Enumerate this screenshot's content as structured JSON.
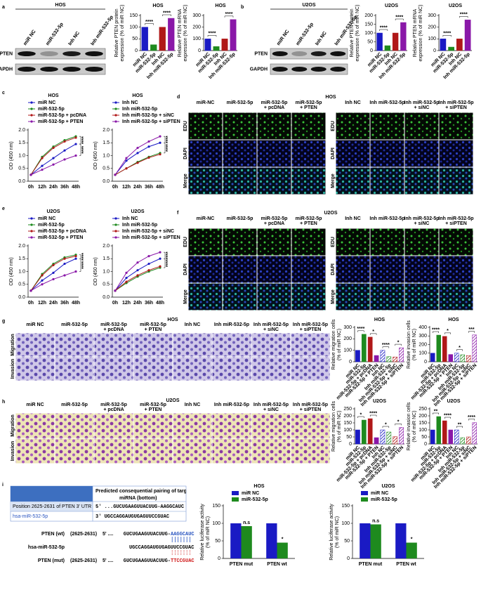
{
  "panel_labels": [
    "a",
    "b",
    "c",
    "d",
    "e",
    "f",
    "g",
    "h",
    "i"
  ],
  "blots": [
    {
      "title": "HOS",
      "lanes": [
        "miR NC",
        "miR-532-5p",
        "Inh NC",
        "Inh miR-532-5p"
      ],
      "rows": [
        "PTEN",
        "GAPDH"
      ]
    },
    {
      "title": "U2OS",
      "lanes": [
        "miR NC",
        "miR-532-5p",
        "Inh NC",
        "Inh miR-532-5p"
      ],
      "rows": [
        "PTEN",
        "GAPDH"
      ]
    }
  ],
  "image_grids": [
    {
      "title": "HOS",
      "groups": [
        [
          [
            "miR-NC"
          ],
          [
            "miR-532-5p"
          ],
          [
            "miR-532-5p",
            "+ pcDNA"
          ],
          [
            "miR-532-5p",
            "+ PTEN"
          ]
        ],
        [
          [
            "Inh NC"
          ],
          [
            "Inh miR-532-5p"
          ],
          [
            "Inh miR-532-5p",
            "+ siNC"
          ],
          [
            "Inh miR-532-5p",
            "+ siPTEN"
          ]
        ]
      ],
      "rows": [
        "EDU",
        "DAPI",
        "Merge"
      ]
    },
    {
      "title": "U2OS",
      "groups": [
        [
          [
            "miR-NC"
          ],
          [
            "miR-532-5p"
          ],
          [
            "miR-532-5p",
            "+ pcDNA"
          ],
          [
            "miR-532-5p",
            "+ PTEN"
          ]
        ],
        [
          [
            "Inh NC"
          ],
          [
            "Inh miR-532-5p"
          ],
          [
            "Inh miR-532-5p",
            "+ siNC"
          ],
          [
            "Inh miR-532-5p",
            "+ siPTEN"
          ]
        ]
      ],
      "rows": [
        "EDU",
        "DAPI",
        "Merge"
      ]
    },
    {
      "title": "HOS",
      "groups": [
        [
          [
            "miR NC"
          ],
          [
            "miR-532-5p"
          ],
          [
            "miR-532-5p",
            "+ pcDNA"
          ],
          [
            "miR-532-5p",
            "+ PTEN"
          ]
        ],
        [
          [
            "Inh NC"
          ],
          [
            "Inh miR-532-5p"
          ],
          [
            "Inh miR-532-5p",
            "+ siNC"
          ],
          [
            "Inh miR-532-5p",
            "+ siPTEN"
          ]
        ]
      ],
      "rows": [
        "Migration",
        "Invasion"
      ]
    },
    {
      "title": "U2OS",
      "groups": [
        [
          [
            "miR NC"
          ],
          [
            "miR-532-5p"
          ],
          [
            "miR-532-5p",
            "+ pcDNA"
          ],
          [
            "miR-532-5p",
            "+ PTEN"
          ]
        ],
        [
          [
            "Inh NC"
          ],
          [
            "Inh miR-532-5p"
          ],
          [
            "Inh miR-532-5p",
            "+ siNC"
          ],
          [
            "Inh miR-532-5p",
            "+ siPTEN"
          ]
        ]
      ],
      "rows": [
        "Migration",
        "Invasion"
      ]
    }
  ],
  "chart_data": [
    {
      "type": "bar",
      "title": "HOS",
      "ylabel": [
        "Relative PTEN protein",
        "expression (% of miR NC)"
      ],
      "categories": [
        "miR NC",
        "miR-532-5p",
        "Inh NC",
        "Inh miR-532-5p"
      ],
      "values": [
        100,
        25,
        100,
        138
      ],
      "colors": [
        "#1a1ac4",
        "#1e8a1e",
        "#b01818",
        "#8a18a8"
      ],
      "ylim": [
        0,
        150
      ],
      "yticks": [
        0,
        50,
        100,
        150
      ],
      "annotations": [
        "****",
        "****"
      ]
    },
    {
      "type": "bar",
      "title": "HOS",
      "ylabel": [
        "Relative PTEN mRNA",
        "expression (% of miR NC)"
      ],
      "categories": [
        "miR NC",
        "miR-532-5p",
        "Inh NC",
        "Inh miR-532-5p"
      ],
      "values": [
        100,
        35,
        100,
        265
      ],
      "colors": [
        "#1a1ac4",
        "#1e8a1e",
        "#b01818",
        "#8a18a8"
      ],
      "ylim": [
        0,
        300
      ],
      "yticks": [
        0,
        100,
        200,
        300
      ],
      "annotations": [
        "****",
        "****"
      ]
    },
    {
      "type": "bar",
      "title": "U2OS",
      "ylabel": [
        "Relative PTEN protein",
        "expression (% of miR NC)"
      ],
      "categories": [
        "miR NC",
        "miR-532-5p",
        "Inh NC",
        "Inh miR-532-5p"
      ],
      "values": [
        100,
        28,
        100,
        160
      ],
      "colors": [
        "#1a1ac4",
        "#1e8a1e",
        "#b01818",
        "#8a18a8"
      ],
      "ylim": [
        0,
        200
      ],
      "yticks": [
        0,
        50,
        100,
        150,
        200
      ],
      "annotations": [
        "****",
        "****"
      ]
    },
    {
      "type": "bar",
      "title": "U2OS",
      "ylabel": [
        "Relative PTEN mRNA",
        "expression (% of miR NC)"
      ],
      "categories": [
        "miR NC",
        "miR-532-5p",
        "Inh NC",
        "Inh miR-532-5p"
      ],
      "values": [
        100,
        30,
        100,
        262
      ],
      "colors": [
        "#1a1ac4",
        "#1e8a1e",
        "#b01818",
        "#8a18a8"
      ],
      "ylim": [
        0,
        300
      ],
      "yticks": [
        0,
        100,
        200,
        300
      ],
      "annotations": [
        "****",
        "****"
      ]
    },
    {
      "type": "line",
      "title": "HOS",
      "ylabel": [
        "OD (450 nm)"
      ],
      "categories": [
        "0h",
        "12h",
        "24h",
        "36h",
        "48h"
      ],
      "series": [
        {
          "name": "miR NC",
          "color": "#1a1ac4",
          "values": [
            0.25,
            0.6,
            0.9,
            1.2,
            1.45
          ]
        },
        {
          "name": "miR-532-5p",
          "color": "#1e8a1e",
          "values": [
            0.25,
            0.95,
            1.35,
            1.6,
            1.75
          ]
        },
        {
          "name": "miR-532-5p + pcDNA",
          "color": "#b01818",
          "values": [
            0.25,
            0.9,
            1.3,
            1.55,
            1.7
          ]
        },
        {
          "name": "miR-532-5p + PTEN",
          "color": "#8a18a8",
          "values": [
            0.25,
            0.45,
            0.65,
            0.85,
            1.0
          ]
        }
      ],
      "ylim": [
        0,
        2.0
      ],
      "yticks": [
        {
          "value": 0,
          "label": "0.0"
        },
        {
          "value": 0.5,
          "label": "0.5"
        },
        {
          "value": 1,
          "label": "1.0"
        },
        {
          "value": 1.5,
          "label": "1.5"
        },
        {
          "value": 2,
          "label": "2.0"
        }
      ],
      "annotations": [
        "****",
        "****"
      ]
    },
    {
      "type": "line",
      "title": "HOS",
      "ylabel": [
        "OD (450 nm)"
      ],
      "categories": [
        "0h",
        "12h",
        "24h",
        "36h",
        "48h"
      ],
      "series": [
        {
          "name": "Inh NC",
          "color": "#1a1ac4",
          "values": [
            0.25,
            0.8,
            1.1,
            1.35,
            1.5
          ]
        },
        {
          "name": "Inh miR-532-5p",
          "color": "#1e8a1e",
          "values": [
            0.25,
            0.5,
            0.75,
            0.95,
            1.1
          ]
        },
        {
          "name": "Inh miR-532-5p + siNC",
          "color": "#b01818",
          "values": [
            0.25,
            0.5,
            0.72,
            0.92,
            1.05
          ]
        },
        {
          "name": "Inh miR-532-5p + siPTEN",
          "color": "#8a18a8",
          "values": [
            0.25,
            0.9,
            1.3,
            1.55,
            1.75
          ]
        }
      ],
      "ylim": [
        0,
        2.0
      ],
      "yticks": [
        {
          "value": 0,
          "label": "0.0"
        },
        {
          "value": 0.5,
          "label": "0.5"
        },
        {
          "value": 1,
          "label": "1.0"
        },
        {
          "value": 1.5,
          "label": "1.5"
        },
        {
          "value": 2,
          "label": "2.0"
        }
      ],
      "annotations": [
        "****",
        "****"
      ]
    },
    {
      "type": "line",
      "title": "U2OS",
      "ylabel": [
        "OD (450 nm)"
      ],
      "categories": [
        "0h",
        "12h",
        "24h",
        "36h",
        "48h"
      ],
      "series": [
        {
          "name": "miR NC",
          "color": "#1a1ac4",
          "values": [
            0.25,
            0.65,
            0.95,
            1.3,
            1.5
          ]
        },
        {
          "name": "miR-532-5p",
          "color": "#1e8a1e",
          "values": [
            0.25,
            0.9,
            1.3,
            1.55,
            1.65
          ]
        },
        {
          "name": "miR-532-5p + pcDNA",
          "color": "#b01818",
          "values": [
            0.25,
            0.85,
            1.25,
            1.5,
            1.6
          ]
        },
        {
          "name": "miR-532-5p + PTEN",
          "color": "#8a18a8",
          "values": [
            0.25,
            0.5,
            0.7,
            0.85,
            1.0
          ]
        }
      ],
      "ylim": [
        0,
        2.0
      ],
      "yticks": [
        {
          "value": 0,
          "label": "0.0"
        },
        {
          "value": 0.5,
          "label": "0.5"
        },
        {
          "value": 1,
          "label": "1.0"
        },
        {
          "value": 1.5,
          "label": "1.5"
        },
        {
          "value": 2,
          "label": "2.0"
        }
      ],
      "annotations": [
        "****",
        "****"
      ]
    },
    {
      "type": "line",
      "title": "U2OS",
      "ylabel": [
        "OD (450 nm)"
      ],
      "categories": [
        "0h",
        "12h",
        "24h",
        "36h",
        "48h"
      ],
      "series": [
        {
          "name": "Inh NC",
          "color": "#1a1ac4",
          "values": [
            0.25,
            0.75,
            1.05,
            1.3,
            1.5
          ]
        },
        {
          "name": "Inh miR-532-5p",
          "color": "#1e8a1e",
          "values": [
            0.25,
            0.55,
            0.8,
            1.0,
            1.15
          ]
        },
        {
          "name": "Inh miR-532-5p + siNC",
          "color": "#b01818",
          "values": [
            0.25,
            0.6,
            0.85,
            1.05,
            1.2
          ]
        },
        {
          "name": "Inh miR-532-5p + siPTEN",
          "color": "#8a18a8",
          "values": [
            0.25,
            0.95,
            1.35,
            1.6,
            1.75
          ]
        }
      ],
      "ylim": [
        0,
        2.0
      ],
      "yticks": [
        {
          "value": 0,
          "label": "0.0"
        },
        {
          "value": 0.5,
          "label": "0.5"
        },
        {
          "value": 1,
          "label": "1.0"
        },
        {
          "value": 1.5,
          "label": "1.5"
        },
        {
          "value": 2,
          "label": "2.0"
        }
      ],
      "annotations": [
        "****",
        "****"
      ]
    },
    {
      "type": "bar",
      "title": "HOS",
      "ylabel": [
        "Relative migration cells",
        "(% of miR NC)"
      ],
      "categories": [
        "miR NC",
        "miR-532-5p",
        "miR-532-5p + pcDNA",
        "miR-532-5p + PTEN",
        "Inh NC",
        "Inh miR-532-5p",
        "Inh miR-532-5p + siNC",
        "Inh miR-532-5p + siPTEN"
      ],
      "values": [
        100,
        240,
        215,
        55,
        100,
        45,
        42,
        122
      ],
      "colors": [
        "#1a1ac4",
        "#1e8a1e",
        "#b01818",
        "#8a18a8",
        "#1a1ac4",
        "#1e8a1e",
        "#b01818",
        "#8a18a8"
      ],
      "hatch": [
        false,
        false,
        false,
        false,
        true,
        true,
        true,
        true
      ],
      "ylim": [
        0,
        300
      ],
      "yticks": [
        0,
        100,
        200,
        300
      ],
      "annotations": [
        "****",
        "*",
        "****",
        "*"
      ]
    },
    {
      "type": "bar",
      "title": "HOS",
      "ylabel": [
        "Relative invasion cells",
        "(% of miR NC)"
      ],
      "categories": [
        "miR NC",
        "miR-532-5p",
        "miR-532-5p + pcDNA",
        "miR-532-5p + PTEN",
        "Inh NC",
        "Inh miR-532-5p",
        "Inh miR-532-5p + siNC",
        "Inh miR-532-5p + siPTEN"
      ],
      "values": [
        100,
        310,
        295,
        85,
        100,
        82,
        72,
        312
      ],
      "colors": [
        "#1a1ac4",
        "#1e8a1e",
        "#b01818",
        "#8a18a8",
        "#1a1ac4",
        "#1e8a1e",
        "#b01818",
        "#8a18a8"
      ],
      "hatch": [
        false,
        false,
        false,
        false,
        true,
        true,
        true,
        true
      ],
      "ylim": [
        0,
        400
      ],
      "yticks": [
        0,
        100,
        200,
        300,
        400
      ],
      "annotations": [
        "****",
        "*",
        "*",
        "***"
      ]
    },
    {
      "type": "bar",
      "title": "U2OS",
      "ylabel": [
        "Relative migration cells",
        "(% of miR NC)"
      ],
      "categories": [
        "miR NC",
        "miR-532-5p",
        "miR-532-5p + pcDNA",
        "miR-532-5p + PTEN",
        "Inh NC",
        "Inh miR-532-5p",
        "Inh miR-532-5p + siNC",
        "Inh miR-532-5p + siPTEN"
      ],
      "values": [
        100,
        170,
        180,
        45,
        100,
        85,
        52,
        118
      ],
      "colors": [
        "#1a1ac4",
        "#1e8a1e",
        "#b01818",
        "#8a18a8",
        "#1a1ac4",
        "#1e8a1e",
        "#b01818",
        "#8a18a8"
      ],
      "hatch": [
        false,
        false,
        false,
        false,
        true,
        true,
        true,
        true
      ],
      "ylim": [
        0,
        250
      ],
      "yticks": [
        0,
        50,
        100,
        150,
        200,
        250
      ],
      "annotations": [
        "*",
        "****",
        "*",
        "*"
      ]
    },
    {
      "type": "bar",
      "title": "U2OS",
      "ylabel": [
        "Relative invasion cells",
        "(% of miR NC)"
      ],
      "categories": [
        "miR NC",
        "miR-532-5p",
        "miR-532-5p + pcDNA",
        "miR-532-5p + PTEN",
        "Inh NC",
        "Inh miR-532-5p",
        "Inh miR-532-5p + siNC",
        "Inh miR-532-5p + siPTEN"
      ],
      "values": [
        100,
        195,
        165,
        100,
        100,
        45,
        50,
        152
      ],
      "colors": [
        "#1a1ac4",
        "#1e8a1e",
        "#b01818",
        "#8a18a8",
        "#1a1ac4",
        "#1e8a1e",
        "#b01818",
        "#8a18a8"
      ],
      "hatch": [
        false,
        false,
        false,
        false,
        true,
        true,
        true,
        true
      ],
      "ylim": [
        0,
        250
      ],
      "yticks": [
        0,
        50,
        100,
        150,
        200,
        250
      ],
      "annotations": [
        "**",
        "****",
        "**",
        "****"
      ]
    },
    {
      "type": "bar",
      "title": "HOS",
      "ylabel": [
        "Relative luciferase activity",
        "(% of miR NC)"
      ],
      "categories": [
        "PTEN mut",
        "PTEN wt"
      ],
      "series": [
        {
          "name": "miR NC",
          "color": "#1a1ac4",
          "values": [
            100,
            100
          ]
        },
        {
          "name": "miR-532-5p",
          "color": "#1e8a1e",
          "values": [
            92,
            45
          ]
        }
      ],
      "ylim": [
        0,
        150
      ],
      "yticks": [
        0,
        50,
        100,
        150
      ],
      "annotations": [
        "n.s",
        "*"
      ]
    },
    {
      "type": "bar",
      "title": "U2OS",
      "ylabel": [
        "Relative luciferase activity",
        "(% of miR NC)"
      ],
      "categories": [
        "PTEN mut",
        "PTEN wt"
      ],
      "series": [
        {
          "name": "miR NC",
          "color": "#1a1ac4",
          "values": [
            100,
            100
          ]
        },
        {
          "name": "miR-532-5p",
          "color": "#1e8a1e",
          "values": [
            97,
            45
          ]
        }
      ],
      "ylim": [
        0,
        150
      ],
      "yticks": [
        0,
        50,
        100,
        150
      ],
      "annotations": [
        "n.s",
        "*"
      ]
    }
  ],
  "sequence": {
    "header": [
      "Predicted consequential pairing of target region (top) and",
      "miRNA (bottom)"
    ],
    "rows": [
      {
        "name": "Position 2625-2631 of PTEN 3' UTR",
        "seq": "5'  ...GUCUGAAGUUACUUG-AAGGCAUC"
      },
      {
        "name": "hsa-miR-532-5p",
        "seq": "3'  UGCCAGGAUGUGAGUUCCGUAC"
      }
    ],
    "alignment": [
      {
        "name": "PTEN (wt)",
        "position": "(2625-2631)",
        "end": "5' ....",
        "seq": "GUCUGAAGUUACUUG-",
        "site": "AAGGCAUC"
      },
      {
        "name": "hsa-miR-532-5p",
        "seq": "UGCCAGGAUGUGAGU",
        "site": "UCCGUAC"
      },
      {
        "name": "PTEN (mut)",
        "position": "(2625-2631)",
        "end": "5' ....",
        "seq": "GUCUGAAGUUACUUG-",
        "site": "TTCCGUAC"
      }
    ]
  }
}
